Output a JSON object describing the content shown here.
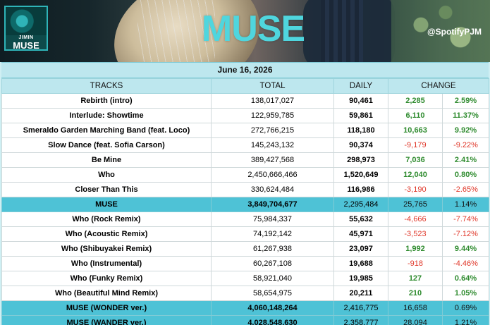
{
  "banner": {
    "album_artist": "JIMIN",
    "album_name": "MUSE",
    "title": "MUSE",
    "handle": "@SpotifyPJM"
  },
  "date": "June 16, 2026",
  "headers": {
    "tracks": "TRACKS",
    "total": "TOTAL",
    "daily": "DAILY",
    "change": "CHANGE"
  },
  "rows": [
    {
      "name": "Rebirth (intro)",
      "total": "138,017,027",
      "daily": "90,461",
      "change": "2,285",
      "pct": "2.59%",
      "dir": "pos",
      "kind": "track"
    },
    {
      "name": "Interlude: Showtime",
      "total": "122,959,785",
      "daily": "59,861",
      "change": "6,110",
      "pct": "11.37%",
      "dir": "pos",
      "kind": "track"
    },
    {
      "name": "Smeraldo Garden Marching Band (feat. Loco)",
      "total": "272,766,215",
      "daily": "118,180",
      "change": "10,663",
      "pct": "9.92%",
      "dir": "pos",
      "kind": "track"
    },
    {
      "name": "Slow Dance (feat. Sofia Carson)",
      "total": "145,243,132",
      "daily": "90,374",
      "change": "-9,179",
      "pct": "-9.22%",
      "dir": "neg",
      "kind": "track"
    },
    {
      "name": "Be Mine",
      "total": "389,427,568",
      "daily": "298,973",
      "change": "7,036",
      "pct": "2.41%",
      "dir": "pos",
      "kind": "track"
    },
    {
      "name": "Who",
      "total": "2,450,666,466",
      "daily": "1,520,649",
      "change": "12,040",
      "pct": "0.80%",
      "dir": "pos",
      "kind": "track"
    },
    {
      "name": "Closer Than This",
      "total": "330,624,484",
      "daily": "116,986",
      "change": "-3,190",
      "pct": "-2.65%",
      "dir": "neg",
      "kind": "track"
    },
    {
      "name": "MUSE",
      "total": "3,849,704,677",
      "daily": "2,295,484",
      "change": "25,765",
      "pct": "1.14%",
      "dir": "pos",
      "kind": "album"
    },
    {
      "name": "Who (Rock Remix)",
      "total": "75,984,337",
      "daily": "55,632",
      "change": "-4,666",
      "pct": "-7.74%",
      "dir": "neg",
      "kind": "track"
    },
    {
      "name": "Who (Acoustic Remix)",
      "total": "74,192,142",
      "daily": "45,971",
      "change": "-3,523",
      "pct": "-7.12%",
      "dir": "neg",
      "kind": "track"
    },
    {
      "name": "Who (Shibuyakei Remix)",
      "total": "61,267,938",
      "daily": "23,097",
      "change": "1,992",
      "pct": "9.44%",
      "dir": "pos",
      "kind": "track"
    },
    {
      "name": "Who (Instrumental)",
      "total": "60,267,108",
      "daily": "19,688",
      "change": "-918",
      "pct": "-4.46%",
      "dir": "neg",
      "kind": "track"
    },
    {
      "name": "Who (Funky Remix)",
      "total": "58,921,040",
      "daily": "19,985",
      "change": "127",
      "pct": "0.64%",
      "dir": "pos",
      "kind": "track"
    },
    {
      "name": "Who (Beautiful Mind Remix)",
      "total": "58,654,975",
      "daily": "20,211",
      "change": "210",
      "pct": "1.05%",
      "dir": "pos",
      "kind": "track"
    },
    {
      "name": "MUSE (WONDER ver.)",
      "total": "4,060,148,264",
      "daily": "2,416,775",
      "change": "16,658",
      "pct": "0.69%",
      "dir": "pos",
      "kind": "album"
    },
    {
      "name": "MUSE (WANDER ver.)",
      "total": "4,028,548,630",
      "daily": "2,358,777",
      "change": "28,094",
      "pct": "1.21%",
      "dir": "pos",
      "kind": "album"
    }
  ]
}
